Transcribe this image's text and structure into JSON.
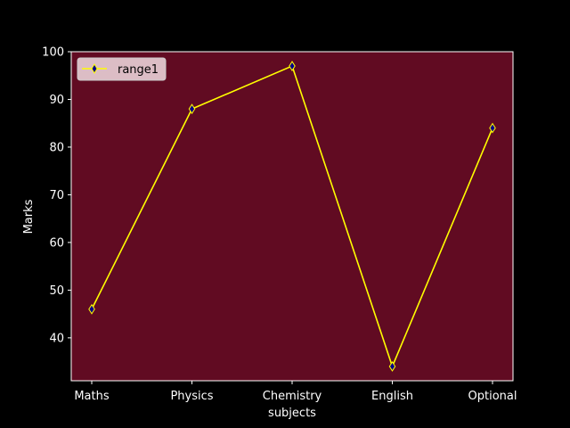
{
  "chart_data": {
    "type": "line",
    "title": "",
    "xlabel": "subjects",
    "ylabel": "Marks",
    "categories": [
      "Maths",
      "Physics",
      "Chemistry",
      "English",
      "Optional"
    ],
    "ylim": [
      31,
      100
    ],
    "yticks": [
      40,
      50,
      60,
      70,
      80,
      90,
      100
    ],
    "grid": false,
    "legend_position": "top-left",
    "series": [
      {
        "name": "range1",
        "values": [
          46,
          88,
          97,
          34,
          84
        ],
        "line_color": "#ffff00",
        "marker": "diamond",
        "marker_face_color": "#00008b"
      }
    ]
  },
  "colors": {
    "figure_background": "#000000",
    "plot_background": "#610b22",
    "axis_and_text": "#ffffff"
  }
}
